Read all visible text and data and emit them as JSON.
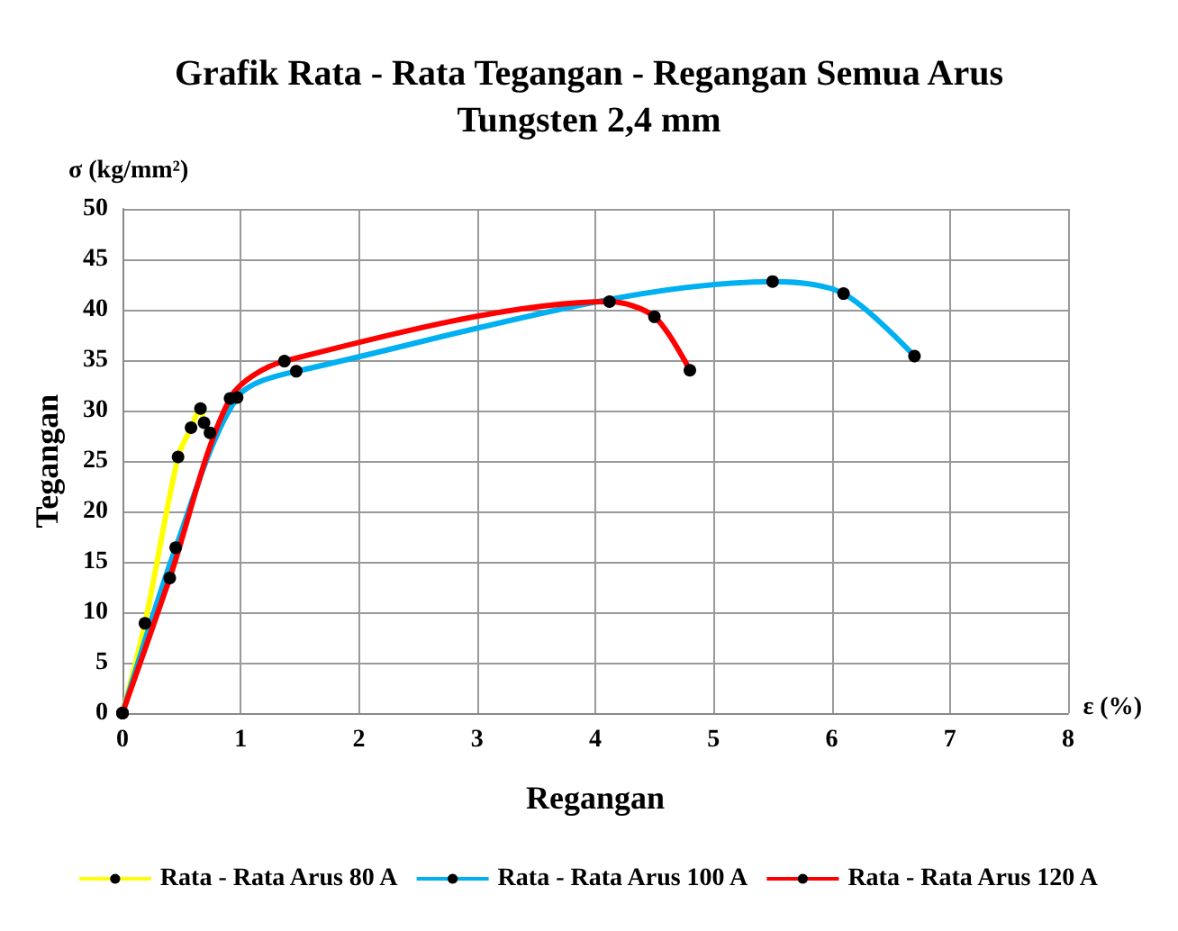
{
  "chart_data": {
    "type": "line",
    "title": "Grafik Rata - Rata Tegangan - Regangan Semua Arus",
    "subtitle": "Tungsten 2,4 mm",
    "xlabel": "Regangan",
    "ylabel": "Tegangan",
    "annotations": [
      "σ (kg/mm²)",
      "ε (%)"
    ],
    "xlim": [
      0,
      8
    ],
    "xticks": [
      0,
      1,
      2,
      3,
      4,
      5,
      6,
      7,
      8
    ],
    "ylim": [
      0,
      50
    ],
    "yticks": [
      0,
      5,
      10,
      15,
      20,
      25,
      30,
      35,
      40,
      45,
      50
    ],
    "grid": true,
    "legend": "bottom",
    "marker": "circle",
    "line_style": "solid",
    "series": [
      {
        "name": "Rata - Rata Arus 80 A",
        "color": "#ffff00",
        "x": [
          0,
          0.19,
          0.47,
          0.58,
          0.66,
          0.69,
          0.74
        ],
        "values": [
          0,
          8.9,
          25.4,
          28.3,
          30.2,
          28.8,
          27.8
        ]
      },
      {
        "name": "Rata - Rata Arus 100 A",
        "color": "#00b0f0",
        "x": [
          0,
          0.45,
          0.97,
          1.47,
          5.5,
          6.1,
          6.7
        ],
        "values": [
          0,
          16.4,
          31.3,
          33.9,
          42.8,
          41.6,
          35.4
        ]
      },
      {
        "name": "Rata - Rata Arus 120 A",
        "color": "#ff0000",
        "x": [
          0,
          0.4,
          0.91,
          1.37,
          4.12,
          4.5,
          4.8
        ],
        "values": [
          0,
          13.4,
          31.2,
          34.9,
          40.8,
          39.3,
          34.0
        ]
      }
    ]
  }
}
